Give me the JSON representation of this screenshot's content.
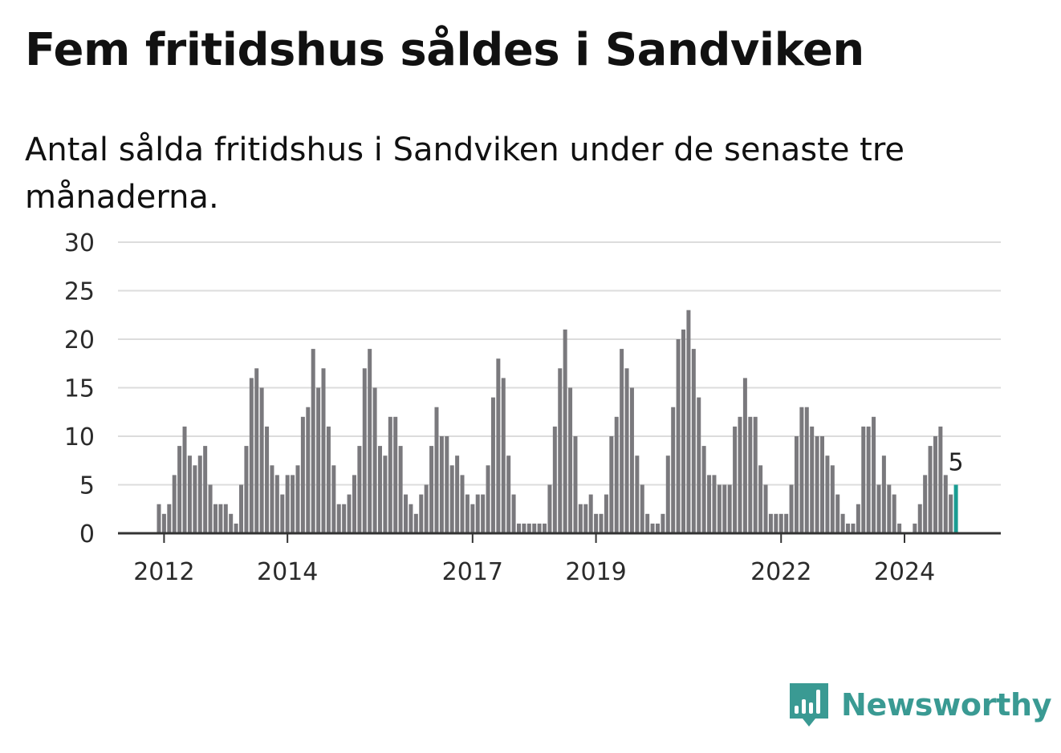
{
  "title": "Fem fritidshus såldes i Sandviken",
  "subtitle": "Antal sålda fritidshus i Sandviken under de senaste tre månaderna.",
  "brand": {
    "name": "Newsworthy",
    "icon": "bar-chart-speech-bubble-icon",
    "color": "#3a9a93"
  },
  "chart_data": {
    "type": "bar",
    "start": "2011-12",
    "interval": "month",
    "ylim": [
      0,
      30
    ],
    "yticks": [
      0,
      5,
      10,
      15,
      20,
      25,
      30
    ],
    "xticks": [
      "2012",
      "2014",
      "2017",
      "2019",
      "2022",
      "2024"
    ],
    "grid": true,
    "bar_color": "#7a797d",
    "highlight_color": "#1a9c92",
    "highlight_label": "5",
    "values": [
      3,
      2,
      3,
      6,
      9,
      11,
      8,
      7,
      8,
      9,
      5,
      3,
      3,
      3,
      2,
      1,
      5,
      9,
      16,
      17,
      15,
      11,
      7,
      6,
      4,
      6,
      6,
      7,
      12,
      13,
      19,
      15,
      17,
      11,
      7,
      3,
      3,
      4,
      6,
      9,
      17,
      19,
      15,
      9,
      8,
      12,
      12,
      9,
      4,
      3,
      2,
      4,
      5,
      9,
      13,
      10,
      10,
      7,
      8,
      6,
      4,
      3,
      4,
      4,
      7,
      14,
      18,
      16,
      8,
      4,
      1,
      1,
      1,
      1,
      1,
      1,
      5,
      11,
      17,
      21,
      15,
      10,
      3,
      3,
      4,
      2,
      2,
      4,
      10,
      12,
      19,
      17,
      15,
      8,
      5,
      2,
      1,
      1,
      2,
      8,
      13,
      20,
      21,
      23,
      19,
      14,
      9,
      6,
      6,
      5,
      5,
      5,
      11,
      12,
      16,
      12,
      12,
      7,
      5,
      2,
      2,
      2,
      2,
      5,
      10,
      13,
      13,
      11,
      10,
      10,
      8,
      7,
      4,
      2,
      1,
      1,
      3,
      11,
      11,
      12,
      5,
      8,
      5,
      4,
      1,
      0,
      0,
      1,
      3,
      6,
      9,
      10,
      11,
      6,
      4,
      5
    ]
  }
}
